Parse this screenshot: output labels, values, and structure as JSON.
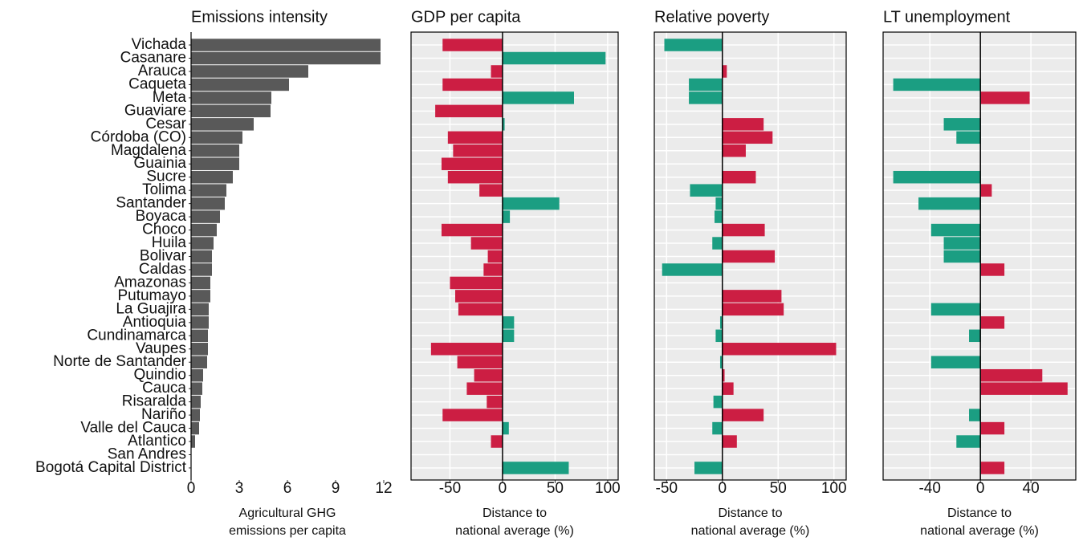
{
  "chart_data": [
    {
      "type": "bar",
      "orientation": "horizontal",
      "title": "Emissions intensity",
      "xlabel": "Agricultural GHG\nemissions per capita",
      "categories": [
        "Vichada",
        "Casanare",
        "Arauca",
        "Caqueta",
        "Meta",
        "Guaviare",
        "Cesar",
        "Córdoba (CO)",
        "Magdalena",
        "Guainia",
        "Sucre",
        "Tolima",
        "Santander",
        "Boyaca",
        "Choco",
        "Huila",
        "Bolivar",
        "Caldas",
        "Amazonas",
        "Putumayo",
        "La Guajira",
        "Antioquia",
        "Cundinamarca",
        "Vaupes",
        "Norte de Santander",
        "Quindio",
        "Cauca",
        "Risaralda",
        "Nariño",
        "Valle del Cauca",
        "Atlantico",
        "San Andres",
        "Bogotá Capital District"
      ],
      "values": [
        11.8,
        11.8,
        7.3,
        6.1,
        5.0,
        4.95,
        3.9,
        3.2,
        3.0,
        3.0,
        2.6,
        2.2,
        2.1,
        1.8,
        1.6,
        1.4,
        1.3,
        1.3,
        1.2,
        1.2,
        1.1,
        1.1,
        1.05,
        1.05,
        1.0,
        0.75,
        0.7,
        0.6,
        0.55,
        0.5,
        0.25,
        0,
        0
      ],
      "color": "#595959",
      "xlim": [
        0,
        12
      ],
      "xticks": [
        0,
        3,
        6,
        9,
        12
      ],
      "grid": false
    },
    {
      "type": "bar",
      "orientation": "horizontal",
      "title": "GDP per capita",
      "xlabel": "Distance to\nnational average (%)",
      "values": [
        -57,
        98,
        -11,
        -57,
        68,
        -64,
        2,
        -52,
        -47,
        -58,
        -52,
        -22,
        54,
        7,
        -58,
        -30,
        -14,
        -18,
        -50,
        -45,
        -42,
        11,
        11,
        -68,
        -43,
        -27,
        -34,
        -15,
        -57,
        6,
        -11,
        null,
        63
      ],
      "positive_color": "#1b9e82",
      "negative_color": "#cc1e43",
      "xlim": [
        -87,
        110
      ],
      "xticks": [
        -50,
        0,
        50,
        100
      ],
      "grid": true
    },
    {
      "type": "bar",
      "orientation": "horizontal",
      "title": "Relative poverty",
      "xlabel": "Distance to\nnational average (%)",
      "values": [
        -52,
        null,
        4,
        -30,
        -30,
        null,
        37,
        45,
        21,
        null,
        30,
        -29,
        -6,
        -7,
        38,
        -9,
        47,
        -54,
        null,
        53,
        55,
        -2,
        -6,
        102,
        -2,
        2,
        10,
        -8,
        37,
        -9,
        13,
        null,
        -25
      ],
      "positive_color": "#cc1e43",
      "negative_color": "#1b9e82",
      "xlim": [
        -61,
        111
      ],
      "xticks": [
        -50,
        0,
        50,
        100
      ],
      "grid": true
    },
    {
      "type": "bar",
      "orientation": "horizontal",
      "title": "LT unemployment",
      "xlabel": "Distance to\nnational average (%)",
      "values": [
        null,
        null,
        null,
        -69,
        39,
        null,
        -29,
        -19,
        null,
        null,
        -69,
        9,
        -49,
        null,
        -39,
        -29,
        -29,
        19,
        null,
        null,
        -39,
        19,
        -9,
        null,
        -39,
        49,
        69,
        null,
        -9,
        19,
        -19,
        null,
        19
      ],
      "positive_color": "#cc1e43",
      "negative_color": "#1b9e82",
      "xlim": [
        -77,
        75.5
      ],
      "xticks": [
        -40,
        0,
        40
      ],
      "grid": true
    }
  ]
}
